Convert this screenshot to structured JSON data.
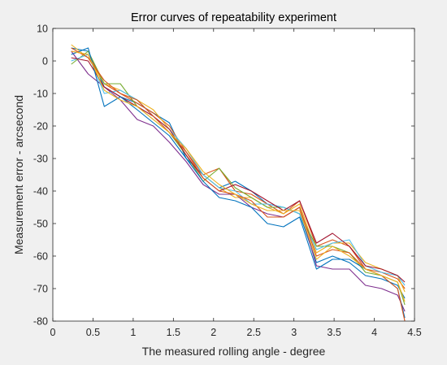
{
  "chart_data": {
    "type": "line",
    "title": "Error curves of repeatability experiment",
    "xlabel": "The measured rolling angle - degree",
    "ylabel": "Measurement error - arcsecond",
    "xlim": [
      0,
      4.5
    ],
    "ylim": [
      -80,
      10
    ],
    "xticks": [
      0,
      0.5,
      1,
      1.5,
      2,
      2.5,
      3,
      3.5,
      4,
      4.5
    ],
    "xtick_labels": [
      "0",
      "0.5",
      "1",
      "1.5",
      "2",
      "2.5",
      "3",
      "3.5",
      "4",
      "4.5"
    ],
    "yticks": [
      10,
      0,
      -10,
      -20,
      -30,
      -40,
      -50,
      -60,
      -70,
      -80
    ],
    "ytick_labels": [
      "10",
      "0",
      "-10",
      "-20",
      "-30",
      "-40",
      "-50",
      "-60",
      "-70",
      "-80"
    ],
    "grid": false,
    "x": [
      0.23,
      0.44,
      0.64,
      0.84,
      1.05,
      1.25,
      1.45,
      1.66,
      1.87,
      2.07,
      2.27,
      2.47,
      2.67,
      2.87,
      3.07,
      3.28,
      3.48,
      3.69,
      3.89,
      4.09,
      4.29,
      4.38
    ],
    "series": [
      {
        "color": "#0072bd",
        "values": [
          4,
          3,
          -8,
          -11,
          -13,
          -16,
          -19,
          -30,
          -35,
          -39,
          -37,
          -40,
          -44,
          -45,
          -47,
          -62,
          -60,
          -62,
          -66,
          -67,
          -69,
          -73
        ]
      },
      {
        "color": "#d95319",
        "values": [
          3,
          2,
          -7,
          -10,
          -13,
          -16,
          -20,
          -28,
          -35,
          -33,
          -40,
          -41,
          -44,
          -47,
          -43,
          -57,
          -55,
          -57,
          -64,
          -65,
          -67,
          -70
        ]
      },
      {
        "color": "#edb120",
        "values": [
          5,
          1,
          -7,
          -9,
          -12,
          -15,
          -21,
          -27,
          -35,
          -39,
          -42,
          -42,
          -45,
          -47,
          -44,
          -59,
          -56,
          -56,
          -62,
          -64,
          -66,
          -71
        ]
      },
      {
        "color": "#7e2f8e",
        "values": [
          3,
          -4,
          -8,
          -12,
          -18,
          -20,
          -25,
          -31,
          -38,
          -41,
          -41,
          -45,
          -47,
          -48,
          -45,
          -63,
          -64,
          -64,
          -69,
          -70,
          -72,
          -77
        ]
      },
      {
        "color": "#77ac30",
        "values": [
          -1,
          3,
          -7,
          -7,
          -14,
          -18,
          -22,
          -29,
          -37,
          -33,
          -39,
          -42,
          -45,
          -45,
          -47,
          -57,
          -57,
          -59,
          -65,
          -66,
          -68,
          -75
        ]
      },
      {
        "color": "#4dbeee",
        "values": [
          0,
          2,
          -10,
          -9,
          -12,
          -17,
          -21,
          -27,
          -35,
          -39,
          -40,
          -44,
          -44,
          -45,
          -47,
          -58,
          -56,
          -55,
          -63,
          -65,
          -66,
          -69
        ]
      },
      {
        "color": "#a2142f",
        "values": [
          1,
          0,
          -8,
          -11,
          -14,
          -17,
          -21,
          -29,
          -36,
          -40,
          -38,
          -40,
          -43,
          -46,
          -43,
          -56,
          -53,
          -57,
          -63,
          -64,
          -66,
          -68
        ]
      },
      {
        "color": "#0072bd",
        "values": [
          2,
          4,
          -14,
          -11,
          -15,
          -19,
          -23,
          -30,
          -37,
          -42,
          -43,
          -45,
          -50,
          -51,
          -48,
          -64,
          -61,
          -61,
          -64,
          -66,
          -70,
          -79
        ]
      },
      {
        "color": "#d95319",
        "values": [
          4,
          1,
          -6,
          -10,
          -12,
          -17,
          -22,
          -28,
          -36,
          -40,
          -41,
          -43,
          -48,
          -48,
          -45,
          -60,
          -58,
          -59,
          -64,
          -66,
          -70,
          -80
        ]
      },
      {
        "color": "#edb120",
        "values": [
          3,
          2,
          -9,
          -12,
          -14,
          -18,
          -22,
          -27,
          -34,
          -38,
          -41,
          -44,
          -46,
          -46,
          -46,
          -61,
          -57,
          -60,
          -64,
          -66,
          -68,
          -74
        ]
      }
    ]
  }
}
